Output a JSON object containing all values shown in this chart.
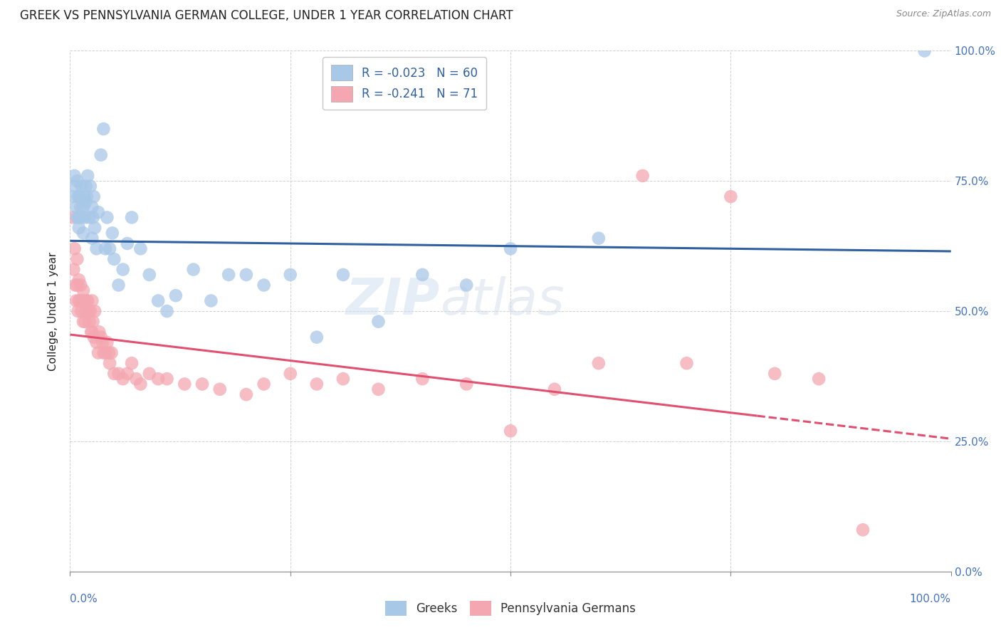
{
  "title": "GREEK VS PENNSYLVANIA GERMAN COLLEGE, UNDER 1 YEAR CORRELATION CHART",
  "source": "Source: ZipAtlas.com",
  "ylabel": "College, Under 1 year",
  "xlim": [
    0.0,
    1.0
  ],
  "ylim": [
    0.0,
    1.0
  ],
  "yticks": [
    0.0,
    0.25,
    0.5,
    0.75,
    1.0
  ],
  "ytick_labels_right": [
    "0.0%",
    "25.0%",
    "50.0%",
    "75.0%",
    "100.0%"
  ],
  "xticks": [
    0.0,
    0.25,
    0.5,
    0.75,
    1.0
  ],
  "legend_blue_r": "-0.023",
  "legend_blue_n": "60",
  "legend_pink_r": "-0.241",
  "legend_pink_n": "71",
  "legend_label_blue": "Greeks",
  "legend_label_pink": "Pennsylvania Germans",
  "blue_color": "#a8c8e8",
  "pink_color": "#f4a7b0",
  "blue_line_color": "#3060a0",
  "pink_line_color": "#e05070",
  "watermark_zip": "ZIP",
  "watermark_atlas": "atlas",
  "background_color": "#ffffff",
  "grid_color": "#cccccc",
  "title_color": "#222222",
  "axis_color": "#222222",
  "tick_color_right": "#4472c4",
  "tick_color_bottom": "#4472c4",
  "blue_scatter_x": [
    0.003,
    0.005,
    0.006,
    0.007,
    0.008,
    0.008,
    0.009,
    0.01,
    0.01,
    0.011,
    0.012,
    0.012,
    0.013,
    0.015,
    0.015,
    0.016,
    0.017,
    0.018,
    0.018,
    0.019,
    0.02,
    0.022,
    0.023,
    0.025,
    0.025,
    0.026,
    0.027,
    0.028,
    0.03,
    0.032,
    0.035,
    0.038,
    0.04,
    0.042,
    0.045,
    0.048,
    0.05,
    0.055,
    0.06,
    0.065,
    0.07,
    0.08,
    0.09,
    0.1,
    0.11,
    0.12,
    0.14,
    0.16,
    0.18,
    0.2,
    0.22,
    0.25,
    0.28,
    0.31,
    0.35,
    0.4,
    0.45,
    0.5,
    0.6,
    0.97
  ],
  "blue_scatter_y": [
    0.72,
    0.76,
    0.74,
    0.7,
    0.68,
    0.75,
    0.72,
    0.68,
    0.66,
    0.72,
    0.7,
    0.68,
    0.74,
    0.65,
    0.7,
    0.72,
    0.68,
    0.71,
    0.74,
    0.72,
    0.76,
    0.68,
    0.74,
    0.64,
    0.7,
    0.68,
    0.72,
    0.66,
    0.62,
    0.69,
    0.8,
    0.85,
    0.62,
    0.68,
    0.62,
    0.65,
    0.6,
    0.55,
    0.58,
    0.63,
    0.68,
    0.62,
    0.57,
    0.52,
    0.5,
    0.53,
    0.58,
    0.52,
    0.57,
    0.57,
    0.55,
    0.57,
    0.45,
    0.57,
    0.48,
    0.57,
    0.55,
    0.62,
    0.64,
    1.0
  ],
  "pink_scatter_x": [
    0.003,
    0.004,
    0.005,
    0.006,
    0.007,
    0.008,
    0.008,
    0.009,
    0.01,
    0.01,
    0.011,
    0.012,
    0.013,
    0.014,
    0.015,
    0.015,
    0.016,
    0.017,
    0.018,
    0.019,
    0.02,
    0.021,
    0.022,
    0.023,
    0.024,
    0.025,
    0.025,
    0.026,
    0.027,
    0.028,
    0.03,
    0.032,
    0.033,
    0.035,
    0.037,
    0.038,
    0.04,
    0.042,
    0.044,
    0.045,
    0.047,
    0.05,
    0.055,
    0.06,
    0.065,
    0.07,
    0.075,
    0.08,
    0.09,
    0.1,
    0.11,
    0.13,
    0.15,
    0.17,
    0.2,
    0.22,
    0.25,
    0.28,
    0.31,
    0.35,
    0.4,
    0.45,
    0.5,
    0.55,
    0.6,
    0.65,
    0.7,
    0.75,
    0.8,
    0.85,
    0.9
  ],
  "pink_scatter_y": [
    0.68,
    0.58,
    0.62,
    0.55,
    0.52,
    0.55,
    0.6,
    0.5,
    0.52,
    0.56,
    0.52,
    0.55,
    0.5,
    0.52,
    0.48,
    0.54,
    0.52,
    0.48,
    0.5,
    0.52,
    0.52,
    0.5,
    0.48,
    0.5,
    0.46,
    0.46,
    0.52,
    0.48,
    0.45,
    0.5,
    0.44,
    0.42,
    0.46,
    0.45,
    0.44,
    0.42,
    0.42,
    0.44,
    0.42,
    0.4,
    0.42,
    0.38,
    0.38,
    0.37,
    0.38,
    0.4,
    0.37,
    0.36,
    0.38,
    0.37,
    0.37,
    0.36,
    0.36,
    0.35,
    0.34,
    0.36,
    0.38,
    0.36,
    0.37,
    0.35,
    0.37,
    0.36,
    0.27,
    0.35,
    0.4,
    0.76,
    0.4,
    0.72,
    0.38,
    0.37,
    0.08
  ],
  "blue_trend_y_start": 0.635,
  "blue_trend_y_end": 0.615,
  "pink_trend_y_start": 0.455,
  "pink_trend_solid_end_x": 0.78,
  "pink_trend_y_end": 0.255
}
